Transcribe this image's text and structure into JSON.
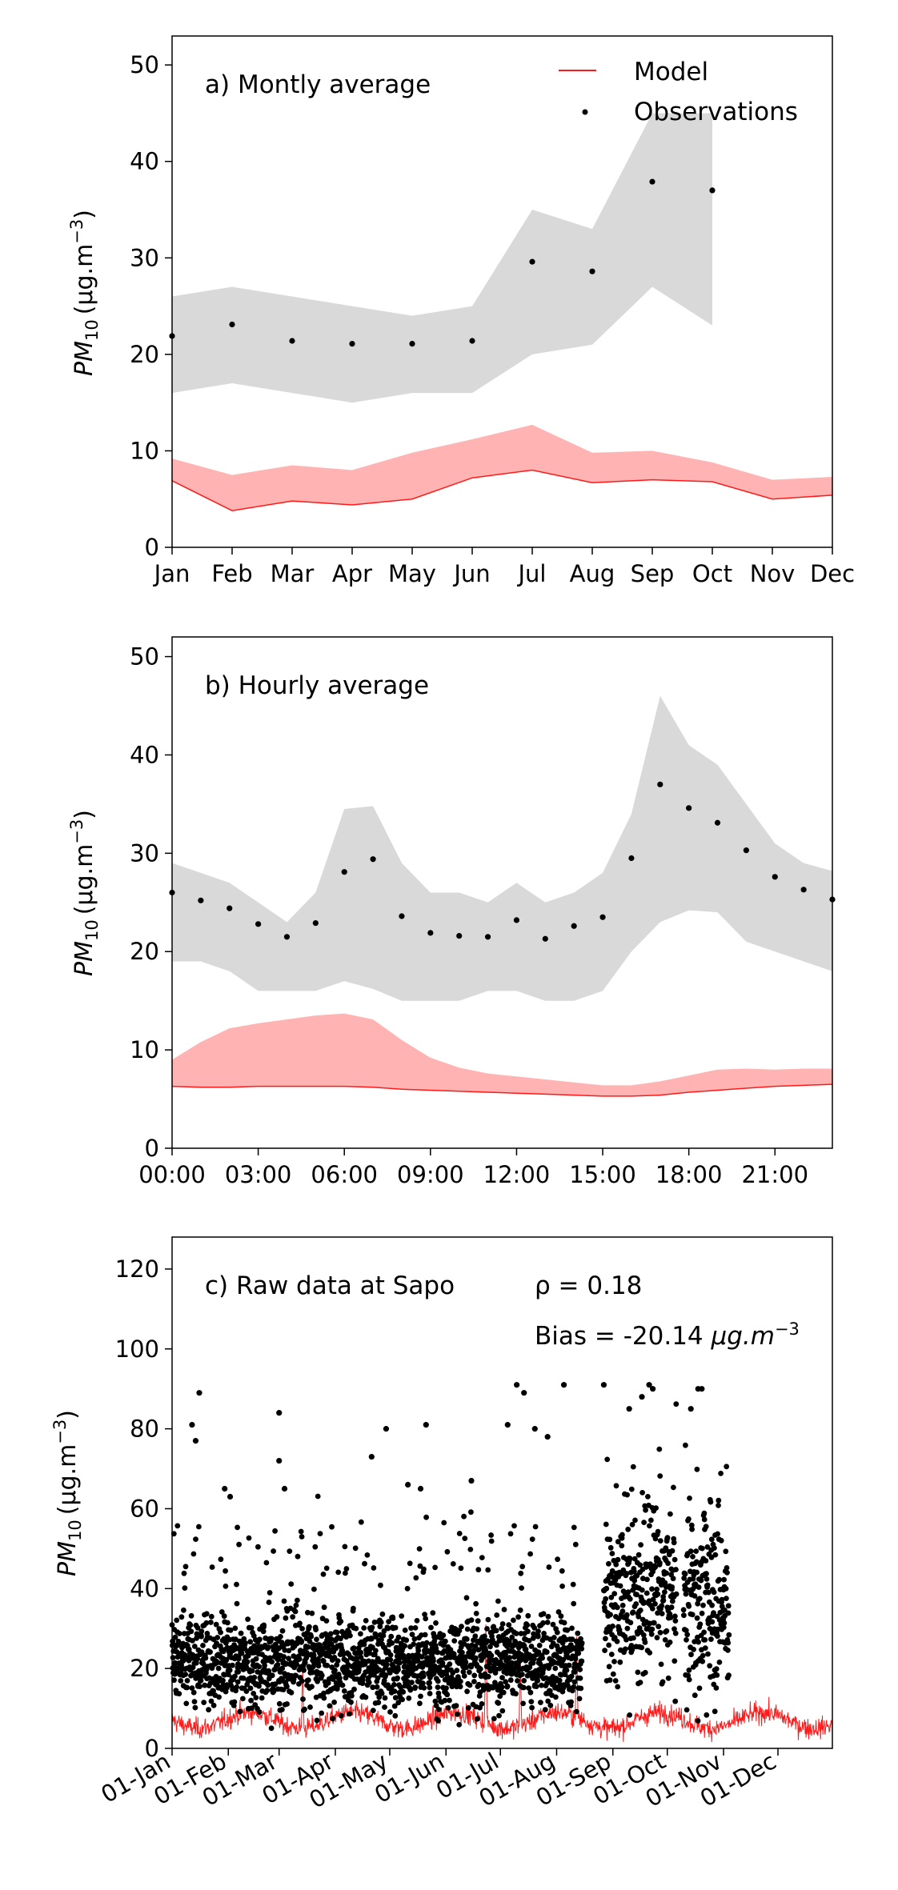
{
  "chart_data": [
    {
      "type": "line",
      "panel": "a",
      "annotation": "a) Montly average",
      "ylabel_base": "PM",
      "ylabel_sub": "10",
      "ylabel_units": "(μg.m",
      "ylabel_exp": "−3",
      "ylabel_close": ")",
      "ylim": [
        0,
        53
      ],
      "yticks": [
        0,
        10,
        20,
        30,
        40,
        50
      ],
      "xlim": [
        1,
        12
      ],
      "xtick_values": [
        1,
        2,
        3,
        4,
        5,
        6,
        7,
        8,
        9,
        10,
        11,
        12
      ],
      "xtick_labels": [
        "Jan",
        "Feb",
        "Mar",
        "Apr",
        "May",
        "Jun",
        "Jul",
        "Aug",
        "Sep",
        "Oct",
        "Nov",
        "Dec"
      ],
      "legend": {
        "placement": "top-right",
        "entries": [
          {
            "label": "Model",
            "style": "line"
          },
          {
            "label": "Observations",
            "style": "dot"
          }
        ]
      },
      "observations": {
        "x": [
          1,
          2,
          3,
          4,
          5,
          6,
          7,
          8,
          9,
          10
        ],
        "mean": [
          21.9,
          23.1,
          21.4,
          21.1,
          21.1,
          21.4,
          29.6,
          28.6,
          37.9,
          37.0
        ],
        "low": [
          16,
          17,
          16,
          15,
          16,
          16,
          20,
          21,
          27,
          23
        ],
        "high": [
          26,
          27,
          26,
          25,
          24,
          25,
          35,
          33,
          45,
          45
        ]
      },
      "model": {
        "x": [
          1,
          2,
          3,
          4,
          5,
          6,
          7,
          8,
          9,
          10,
          11,
          12
        ],
        "mean": [
          6.9,
          3.8,
          4.8,
          4.4,
          5.0,
          7.2,
          8.0,
          6.7,
          7.0,
          6.8,
          5.0,
          5.4
        ],
        "low": [
          6.9,
          3.8,
          4.8,
          4.4,
          5.0,
          7.2,
          8.0,
          6.7,
          7.0,
          6.8,
          5.0,
          5.4
        ],
        "high": [
          9.2,
          7.5,
          8.5,
          8.0,
          9.8,
          11.2,
          12.7,
          9.8,
          10.0,
          8.8,
          7.0,
          7.3
        ]
      },
      "colors": {
        "obs_band": "#d9d9d9",
        "model_band": "#ffb3b3",
        "model_line": "#ff1a1a",
        "obs_dot": "#000000"
      }
    },
    {
      "type": "line",
      "panel": "b",
      "annotation": "b) Hourly average",
      "ylabel_base": "PM",
      "ylabel_sub": "10",
      "ylabel_units": "(μg.m",
      "ylabel_exp": "−3",
      "ylabel_close": ")",
      "ylim": [
        0,
        52
      ],
      "yticks": [
        0,
        10,
        20,
        30,
        40,
        50
      ],
      "xlim": [
        0,
        23
      ],
      "xtick_values": [
        0,
        3,
        6,
        9,
        12,
        15,
        18,
        21
      ],
      "xtick_labels": [
        "00:00",
        "03:00",
        "06:00",
        "09:00",
        "12:00",
        "15:00",
        "18:00",
        "21:00"
      ],
      "observations": {
        "x": [
          0,
          1,
          2,
          3,
          4,
          5,
          6,
          7,
          8,
          9,
          10,
          11,
          12,
          13,
          14,
          15,
          16,
          17,
          18,
          19,
          20,
          21,
          22,
          23
        ],
        "mean": [
          26.0,
          25.2,
          24.4,
          22.8,
          21.5,
          22.9,
          28.1,
          29.4,
          23.6,
          21.9,
          21.6,
          21.5,
          23.2,
          21.3,
          22.6,
          23.5,
          29.5,
          37.0,
          34.6,
          33.1,
          30.3,
          27.6,
          26.3,
          25.3
        ],
        "low": [
          19,
          19,
          18,
          16,
          16,
          16,
          17,
          16.2,
          15,
          15,
          15,
          16,
          16,
          15,
          15,
          16,
          20,
          23,
          24.2,
          24,
          21,
          20,
          19,
          18
        ],
        "high": [
          29,
          28,
          27,
          25,
          23,
          26,
          34.5,
          34.8,
          29,
          26,
          26,
          25,
          27,
          25,
          26,
          28,
          34,
          46,
          41,
          39,
          35,
          31,
          29,
          28.2
        ]
      },
      "model": {
        "x": [
          0,
          1,
          2,
          3,
          4,
          5,
          6,
          7,
          8,
          9,
          10,
          11,
          12,
          13,
          14,
          15,
          16,
          17,
          18,
          19,
          20,
          21,
          22,
          23
        ],
        "mean": [
          6.3,
          6.2,
          6.2,
          6.3,
          6.3,
          6.3,
          6.3,
          6.2,
          6.0,
          5.9,
          5.8,
          5.7,
          5.6,
          5.5,
          5.4,
          5.3,
          5.3,
          5.4,
          5.7,
          5.9,
          6.1,
          6.3,
          6.4,
          6.5
        ],
        "low": [
          6.3,
          6.2,
          6.2,
          6.3,
          6.3,
          6.3,
          6.3,
          6.2,
          6.0,
          5.9,
          5.8,
          5.7,
          5.6,
          5.5,
          5.4,
          5.3,
          5.3,
          5.4,
          5.7,
          5.9,
          6.1,
          6.3,
          6.4,
          6.5
        ],
        "high": [
          9.0,
          10.8,
          12.2,
          12.7,
          13.1,
          13.5,
          13.7,
          13.1,
          11.0,
          9.2,
          8.2,
          7.6,
          7.3,
          7.0,
          6.7,
          6.4,
          6.4,
          6.8,
          7.4,
          8.0,
          8.1,
          8.0,
          8.1,
          8.1
        ]
      },
      "colors": {
        "obs_band": "#d9d9d9",
        "model_band": "#ffb3b3",
        "model_line": "#ff1a1a",
        "obs_dot": "#000000"
      }
    },
    {
      "type": "scatter",
      "panel": "c",
      "annotation": "c) Raw data at Sapo",
      "stat_rho": "ρ = 0.18",
      "stat_bias_prefix": "Bias = -20.14 ",
      "stat_bias_units": "μg.m",
      "stat_bias_exp": "−3",
      "ylabel_base": "PM",
      "ylabel_sub": "10",
      "ylabel_units": "(μg.m",
      "ylabel_exp": "−3",
      "ylabel_close": ")",
      "ylim": [
        0,
        128
      ],
      "yticks": [
        0,
        20,
        40,
        60,
        80,
        100,
        120
      ],
      "xlim": [
        "2019-01-01",
        "2019-12-31"
      ],
      "xtick_dates": [
        "2019-01-01",
        "2019-02-01",
        "2019-03-01",
        "2019-04-01",
        "2019-05-01",
        "2019-06-01",
        "2019-07-01",
        "2019-08-01",
        "2019-09-01",
        "2019-10-01",
        "2019-11-01",
        "2019-12-01"
      ],
      "xtick_labels": [
        "01-Jan",
        "01-Feb",
        "01-Mar",
        "01-Apr",
        "01-May",
        "01-Jun",
        "01-Jul",
        "01-Aug",
        "01-Sep",
        "01-Oct",
        "01-Nov",
        "01-Dec"
      ],
      "observed_periods": [
        {
          "start": "2019-01-01",
          "end": "2019-08-15",
          "base": 22,
          "spread": 8
        },
        {
          "start": "2019-08-27",
          "end": "2019-10-06",
          "base": 38,
          "spread": 14
        },
        {
          "start": "2019-10-10",
          "end": "2019-11-04",
          "base": 36,
          "spread": 16
        }
      ],
      "observation_peaks": [
        {
          "date": "2019-01-16",
          "value": 89
        },
        {
          "date": "2019-01-12",
          "value": 81
        },
        {
          "date": "2019-01-14",
          "value": 77
        },
        {
          "date": "2019-01-30",
          "value": 65
        },
        {
          "date": "2019-02-02",
          "value": 63
        },
        {
          "date": "2019-03-01",
          "value": 84
        },
        {
          "date": "2019-03-01",
          "value": 72
        },
        {
          "date": "2019-03-04",
          "value": 65
        },
        {
          "date": "2019-04-21",
          "value": 73
        },
        {
          "date": "2019-04-29",
          "value": 80
        },
        {
          "date": "2019-05-11",
          "value": 66
        },
        {
          "date": "2019-05-21",
          "value": 81
        },
        {
          "date": "2019-05-18",
          "value": 65
        },
        {
          "date": "2019-06-15",
          "value": 67
        },
        {
          "date": "2019-07-05",
          "value": 81
        },
        {
          "date": "2019-07-10",
          "value": 91
        },
        {
          "date": "2019-07-14",
          "value": 89
        },
        {
          "date": "2019-07-20",
          "value": 80
        },
        {
          "date": "2019-07-27",
          "value": 78
        },
        {
          "date": "2019-08-05",
          "value": 91
        },
        {
          "date": "2019-08-27",
          "value": 91
        },
        {
          "date": "2019-09-10",
          "value": 85
        },
        {
          "date": "2019-09-17",
          "value": 88
        },
        {
          "date": "2019-09-21",
          "value": 91
        },
        {
          "date": "2019-09-23",
          "value": 90
        },
        {
          "date": "2019-10-14",
          "value": 85
        },
        {
          "date": "2019-10-18",
          "value": 90
        },
        {
          "date": "2019-10-20",
          "value": 90
        }
      ],
      "model_series": {
        "mean": 7,
        "spread": 3,
        "spikes": [
          {
            "date": "2019-07-12",
            "value": 22
          },
          {
            "date": "2019-06-23",
            "value": 31
          },
          {
            "date": "2019-08-12",
            "value": 28
          },
          {
            "date": "2019-03-14",
            "value": 20
          }
        ]
      },
      "colors": {
        "model_line": "#ff1a1a",
        "obs_dot": "#000000"
      }
    }
  ]
}
